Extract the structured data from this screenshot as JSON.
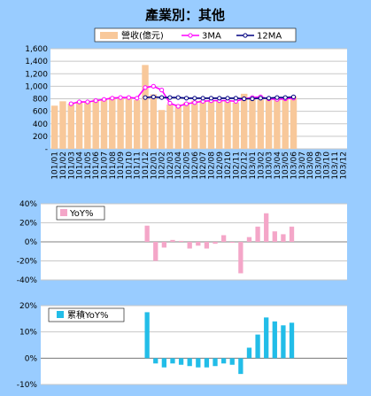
{
  "chart_data": [
    {
      "type": "bar",
      "title": "產業別：其他",
      "ylim": [
        0,
        1600
      ],
      "y_ticks": [
        "1,600",
        "1,400",
        "1,200",
        "1,000",
        "800",
        "600",
        "400",
        "200",
        "-"
      ],
      "grid": true,
      "legend_position": "top",
      "categories": [
        "101/01",
        "101/02",
        "101/03",
        "101/04",
        "101/05",
        "101/06",
        "101/07",
        "101/08",
        "101/09",
        "101/10",
        "101/11",
        "101/12",
        "102/01",
        "102/02",
        "102/03",
        "102/04",
        "102/05",
        "102/06",
        "102/07",
        "102/08",
        "102/09",
        "102/10",
        "102/11",
        "102/12",
        "103/01",
        "103/02",
        "103/03",
        "103/04",
        "103/05",
        "103/06",
        "103/07",
        "103/08",
        "103/09",
        "103/10",
        "103/11",
        "103/12"
      ],
      "series": [
        {
          "name": "營收(億元)",
          "kind": "bar",
          "color": "#f8c89a",
          "values": [
            690,
            760,
            720,
            760,
            760,
            790,
            800,
            830,
            830,
            810,
            780,
            1340,
            870,
            620,
            710,
            710,
            740,
            770,
            780,
            760,
            770,
            770,
            740,
            880,
            830,
            790,
            790,
            800,
            800,
            840,
            null,
            null,
            null,
            null,
            null,
            null
          ]
        },
        {
          "name": "3MA",
          "kind": "line",
          "color": "#ff00ff",
          "values": [
            null,
            null,
            720,
            750,
            750,
            770,
            790,
            810,
            820,
            820,
            810,
            980,
            1000,
            940,
            730,
            680,
            720,
            740,
            760,
            770,
            770,
            770,
            760,
            800,
            820,
            830,
            800,
            790,
            800,
            810,
            null,
            null,
            null,
            null,
            null,
            null
          ]
        },
        {
          "name": "12MA",
          "kind": "line",
          "color": "#000080",
          "values": [
            null,
            null,
            null,
            null,
            null,
            null,
            null,
            null,
            null,
            null,
            null,
            820,
            830,
            820,
            820,
            820,
            810,
            810,
            810,
            810,
            810,
            810,
            810,
            800,
            800,
            810,
            810,
            820,
            820,
            830,
            null,
            null,
            null,
            null,
            null,
            null
          ]
        }
      ]
    },
    {
      "type": "bar",
      "ylim": [
        -40,
        40
      ],
      "y_ticks": [
        "40%",
        "20%",
        "0%",
        "-20%",
        "-40%"
      ],
      "grid": true,
      "legend_position": "top-left",
      "series": [
        {
          "name": "YoY%",
          "color": "#f4a6c8",
          "values": [
            null,
            null,
            null,
            null,
            null,
            null,
            null,
            null,
            null,
            null,
            null,
            null,
            17,
            -20,
            -6,
            2,
            1,
            -7,
            -4,
            -7,
            -2,
            7,
            -1,
            -33,
            5,
            16,
            30,
            11,
            8,
            16,
            null,
            null,
            null,
            null,
            null,
            null
          ]
        }
      ]
    },
    {
      "type": "bar",
      "ylim": [
        -10,
        20
      ],
      "y_ticks": [
        "20%",
        "10%",
        "0%",
        "-10%"
      ],
      "grid": true,
      "legend_position": "top-left",
      "series": [
        {
          "name": "累積YoY%",
          "color": "#22bde8",
          "values": [
            null,
            null,
            null,
            null,
            null,
            null,
            null,
            null,
            null,
            null,
            null,
            null,
            17.5,
            -2,
            -3.5,
            -2,
            -2.5,
            -3,
            -3.5,
            -3.5,
            -3,
            -2,
            -2.5,
            -6,
            4,
            9,
            15.5,
            14,
            12.5,
            13.5,
            null,
            null,
            null,
            null,
            null,
            null
          ]
        }
      ]
    }
  ]
}
